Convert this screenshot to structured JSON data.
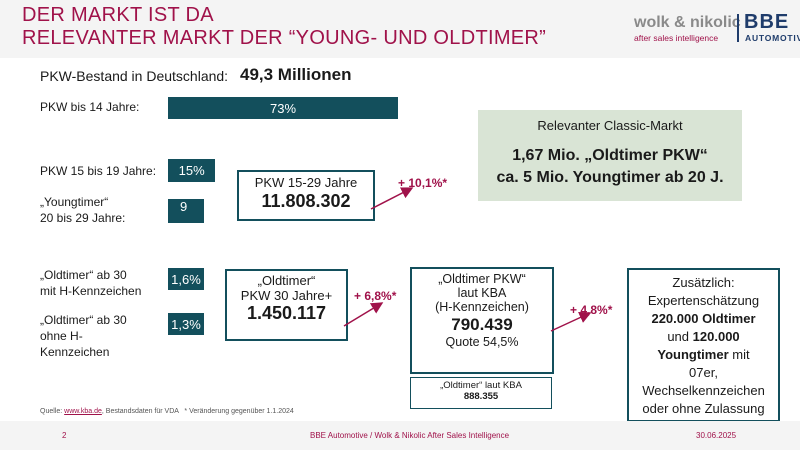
{
  "title": {
    "line1": "DER MARKT IST DA",
    "line2": "RELEVANTER MARKT DER “YOUNG- UND OLDTIMER”"
  },
  "logo": {
    "brand": "wolk & nikolic",
    "tagline": "after sales intelligence",
    "bbe": "BBE",
    "automotive": "AUTOMOTIVE"
  },
  "stock": {
    "label": "PKW-Bestand in Deutschland:",
    "value": "49,3 Millionen"
  },
  "chart_data": {
    "type": "bar",
    "categories": [
      "PKW bis 14 Jahre:",
      "PKW 15 bis 19 Jahre:",
      "„Youngtimer“ 20 bis 29 Jahre:",
      "„Oldtimer“ ab 30 mit H-Kennzeichen",
      "„Oldtimer“ ab 30 ohne H-Kennzeichen"
    ],
    "values": [
      73,
      15,
      9,
      1.6,
      1.3
    ],
    "value_labels": [
      "73%",
      "15%",
      "9",
      "1,6%",
      "1,3%"
    ],
    "unit": "%"
  },
  "labels": {
    "youngtimer_line1": "„Youngtimer“",
    "youngtimer_line2": "20 bis 29 Jahre:",
    "oldtimer_h_line1": "„Oldtimer“  ab 30",
    "oldtimer_h_line2": "mit H-Kennzeichen",
    "oldtimer_oh_line1": "„Oldtimer“  ab 30",
    "oldtimer_oh_line2": "ohne H-",
    "oldtimer_oh_line3": "Kennzeichen"
  },
  "box_pkw1529": {
    "line1": "PKW 15-29 Jahre",
    "value": "11.808.302"
  },
  "pct_young": "+ 10,1%*",
  "box_old30": {
    "line1": "„Oldtimer“",
    "line2": "PKW 30 Jahre+",
    "value": "1.450.117"
  },
  "pct_old30": "+ 6,8%*",
  "box_kba": {
    "line1": "„Oldtimer PKW“",
    "line2": "laut KBA",
    "line3": "(H-Kennzeichen)",
    "value": "790.439",
    "quote": "Quote 54,5%"
  },
  "pct_kba": "+ 4,8%*",
  "box_kba_small": {
    "line1": "„Oldtimer“ laut KBA",
    "value": "888.355"
  },
  "box_extra": {
    "line1": "Zusätzlich:",
    "line2": "Expertenschätzung",
    "line3": "220.000 Oldtimer",
    "line4": "und",
    "line4b": "120.000",
    "line5": "Youngtimer",
    "line5b": "mit",
    "line6": "07er,",
    "line7": "Wechselkennzeichen",
    "line8": "oder ohne Zulassung"
  },
  "green_box": {
    "title": "Relevanter Classic-Markt",
    "line1": "1,67 Mio. „Oldtimer PKW“",
    "line2": "ca. 5 Mio. Youngtimer ab 20 J."
  },
  "source": {
    "prefix": "Quelle:",
    "link": "www.kba.de",
    "rest": ", Bestandsdaten für VDA",
    "note": "* Veränderung gegenüber 1.1.2024"
  },
  "footer": {
    "page": "2",
    "center": "BBE Automotive / Wolk & Nikolic After Sales Intelligence",
    "date": "30.06.2025"
  },
  "colors": {
    "accent": "#a0124a",
    "bar": "#134f5c",
    "green": "#d9e4d5"
  }
}
